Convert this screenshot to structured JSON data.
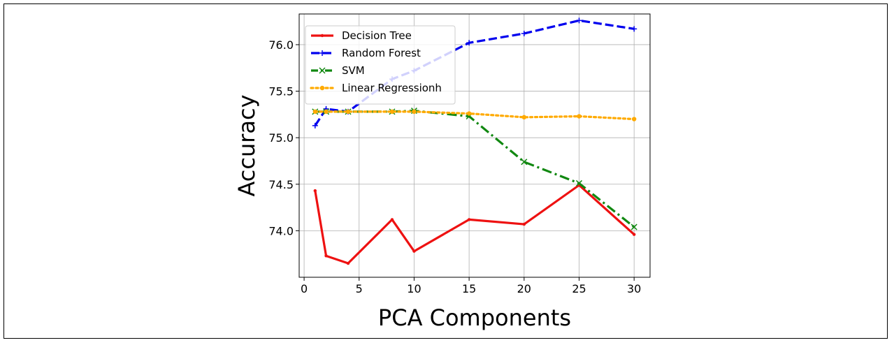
{
  "chart_data": {
    "type": "line",
    "title": "",
    "xlabel": "PCA Components",
    "ylabel": "Accuracy",
    "xlim": [
      -0.45,
      31.45
    ],
    "ylim": [
      73.5,
      76.33
    ],
    "xticks": [
      0,
      5,
      10,
      15,
      20,
      25,
      30
    ],
    "yticks": [
      74.0,
      74.5,
      75.0,
      75.5,
      76.0
    ],
    "ytick_labels": [
      "74.0",
      "74.5",
      "75.0",
      "75.5",
      "76.0"
    ],
    "grid": true,
    "legend_position": "top-left",
    "x": [
      1,
      2,
      4,
      8,
      10,
      15,
      20,
      25,
      30
    ],
    "series": [
      {
        "name": "Decision Tree",
        "color": "#ee1111",
        "style": "solid",
        "marker": "point",
        "values": [
          74.43,
          73.73,
          73.65,
          74.12,
          73.78,
          74.12,
          74.07,
          74.49,
          73.96
        ]
      },
      {
        "name": "Random Forest",
        "color": "#0000ee",
        "style": "dashed",
        "marker": "plus",
        "values": [
          75.13,
          75.31,
          75.28,
          75.63,
          75.72,
          76.02,
          76.12,
          76.26,
          76.17
        ]
      },
      {
        "name": "SVM",
        "color": "#118811",
        "style": "dashdot",
        "marker": "x",
        "values": [
          75.28,
          75.28,
          75.28,
          75.28,
          75.29,
          75.23,
          74.74,
          74.51,
          74.04
        ]
      },
      {
        "name": "Linear Regressionh",
        "color": "#ffaa00",
        "style": "dotted",
        "marker": "dot",
        "values": [
          75.28,
          75.28,
          75.28,
          75.28,
          75.28,
          75.26,
          75.22,
          75.23,
          75.2
        ]
      }
    ]
  }
}
